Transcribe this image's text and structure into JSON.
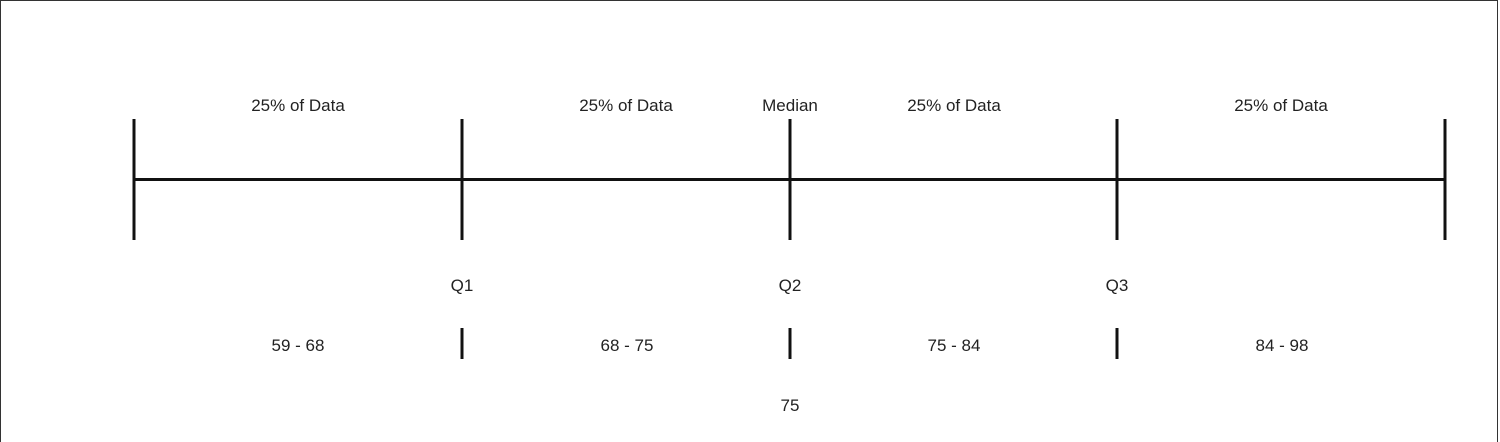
{
  "segment_labels": [
    "25% of Data",
    "25% of Data",
    "25% of Data",
    "25% of Data"
  ],
  "median_label": "Median",
  "quartiles": [
    "Q1",
    "Q2",
    "Q3"
  ],
  "ranges": [
    "59 - 68",
    "68 - 75",
    "75 - 84",
    "84 - 98"
  ],
  "median_value": "75"
}
